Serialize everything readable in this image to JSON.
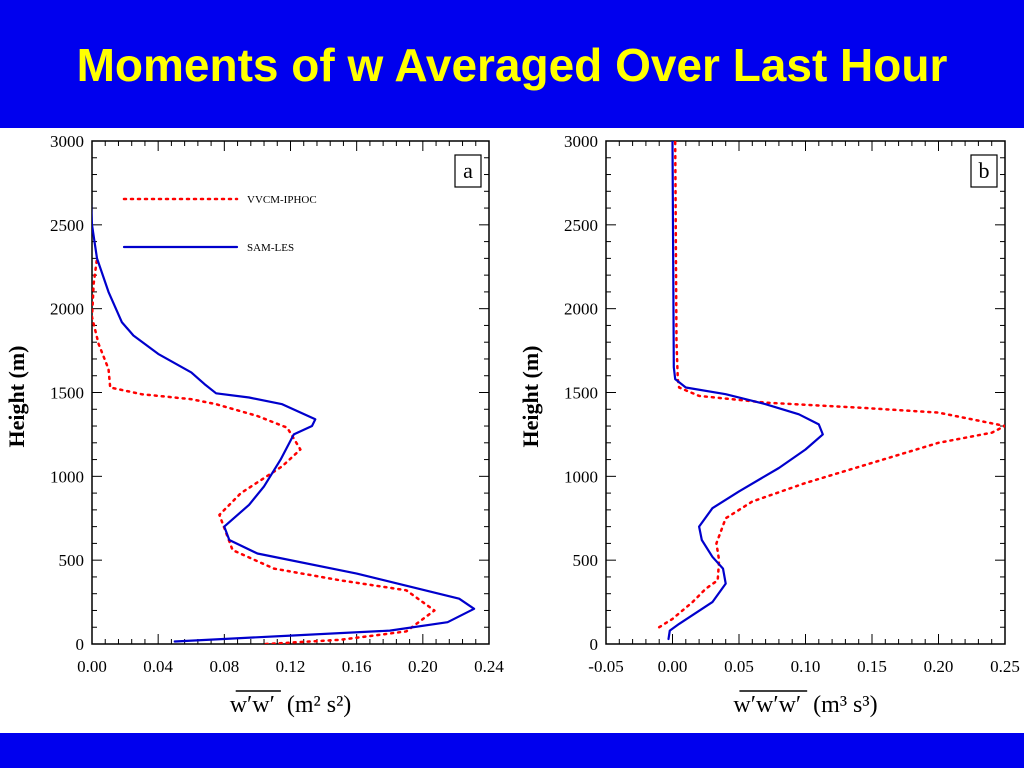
{
  "slide": {
    "title": "Moments of w Averaged Over Last Hour",
    "colors": {
      "banner": "#0000ee",
      "title": "#ffff00"
    }
  },
  "chart_data": [
    {
      "type": "line",
      "panel_label": "a",
      "ylabel": "Height (m)",
      "xlabel_symbol": "w′w′",
      "xlabel_unit": "(m² s²)",
      "xlim": [
        0.0,
        0.24
      ],
      "ylim": [
        0,
        3000
      ],
      "xticks": [
        "0.00",
        "0.04",
        "0.08",
        "0.12",
        "0.16",
        "0.20",
        "0.24"
      ],
      "xtick_values": [
        0.0,
        0.04,
        0.08,
        0.12,
        0.16,
        0.2,
        0.24
      ],
      "yticks": [
        "0",
        "500",
        "1000",
        "1500",
        "2000",
        "2500",
        "3000"
      ],
      "ytick_values": [
        0,
        500,
        1000,
        1500,
        2000,
        2500,
        3000
      ],
      "legend_position": "top-left",
      "series": [
        {
          "name": "VVCM-IPHOC",
          "color": "#ff0000",
          "style": "dotted",
          "points": [
            [
              0.105,
              0
            ],
            [
              0.15,
              25
            ],
            [
              0.19,
              75
            ],
            [
              0.207,
              200
            ],
            [
              0.19,
              320
            ],
            [
              0.15,
              380
            ],
            [
              0.11,
              450
            ],
            [
              0.085,
              560
            ],
            [
              0.077,
              770
            ],
            [
              0.09,
              900
            ],
            [
              0.115,
              1060
            ],
            [
              0.126,
              1160
            ],
            [
              0.118,
              1290
            ],
            [
              0.1,
              1360
            ],
            [
              0.075,
              1430
            ],
            [
              0.06,
              1460
            ],
            [
              0.03,
              1490
            ],
            [
              0.011,
              1530
            ],
            [
              0.01,
              1640
            ],
            [
              0.004,
              1790
            ],
            [
              0.0,
              1950
            ],
            [
              0.001,
              2150
            ],
            [
              0.003,
              2300
            ]
          ]
        },
        {
          "name": "SAM-LES",
          "color": "#0000cc",
          "style": "solid",
          "points": [
            [
              0.05,
              15
            ],
            [
              0.12,
              50
            ],
            [
              0.18,
              80
            ],
            [
              0.215,
              130
            ],
            [
              0.231,
              210
            ],
            [
              0.222,
              270
            ],
            [
              0.16,
              420
            ],
            [
              0.1,
              540
            ],
            [
              0.083,
              620
            ],
            [
              0.08,
              700
            ],
            [
              0.095,
              830
            ],
            [
              0.104,
              940
            ],
            [
              0.114,
              1100
            ],
            [
              0.122,
              1250
            ],
            [
              0.133,
              1300
            ],
            [
              0.135,
              1340
            ],
            [
              0.115,
              1430
            ],
            [
              0.095,
              1470
            ],
            [
              0.075,
              1495
            ],
            [
              0.068,
              1550
            ],
            [
              0.06,
              1620
            ],
            [
              0.04,
              1730
            ],
            [
              0.025,
              1840
            ],
            [
              0.018,
              1920
            ],
            [
              0.01,
              2100
            ],
            [
              0.003,
              2300
            ],
            [
              0.0,
              2500
            ],
            [
              -0.001,
              2700
            ]
          ]
        }
      ]
    },
    {
      "type": "line",
      "panel_label": "b",
      "ylabel": "Height (m)",
      "xlabel_symbol": "w′w′w′",
      "xlabel_unit": "(m³ s³)",
      "xlim": [
        -0.05,
        0.25
      ],
      "ylim": [
        0,
        3000
      ],
      "xticks": [
        "-0.05",
        "0.00",
        "0.05",
        "0.10",
        "0.15",
        "0.20",
        "0.25"
      ],
      "xtick_values": [
        -0.05,
        0.0,
        0.05,
        0.1,
        0.15,
        0.2,
        0.25
      ],
      "yticks": [
        "0",
        "500",
        "1000",
        "1500",
        "2000",
        "2500",
        "3000"
      ],
      "ytick_values": [
        0,
        500,
        1000,
        1500,
        2000,
        2500,
        3000
      ],
      "series": [
        {
          "name": "VVCM-IPHOC",
          "color": "#ff0000",
          "style": "dotted",
          "points": [
            [
              -0.01,
              100
            ],
            [
              0.0,
              150
            ],
            [
              0.015,
              250
            ],
            [
              0.025,
              330
            ],
            [
              0.034,
              380
            ],
            [
              0.035,
              500
            ],
            [
              0.033,
              600
            ],
            [
              0.04,
              750
            ],
            [
              0.06,
              850
            ],
            [
              0.1,
              960
            ],
            [
              0.15,
              1080
            ],
            [
              0.2,
              1200
            ],
            [
              0.24,
              1260
            ],
            [
              0.25,
              1300
            ],
            [
              0.2,
              1380
            ],
            [
              0.14,
              1410
            ],
            [
              0.07,
              1440
            ],
            [
              0.02,
              1480
            ],
            [
              0.005,
              1530
            ],
            [
              0.004,
              1580
            ],
            [
              0.003,
              1800
            ],
            [
              0.002,
              3000
            ]
          ]
        },
        {
          "name": "SAM-LES",
          "color": "#0000cc",
          "style": "solid",
          "points": [
            [
              -0.003,
              30
            ],
            [
              -0.002,
              80
            ],
            [
              0.005,
              120
            ],
            [
              0.03,
              250
            ],
            [
              0.04,
              360
            ],
            [
              0.038,
              450
            ],
            [
              0.03,
              520
            ],
            [
              0.022,
              620
            ],
            [
              0.02,
              700
            ],
            [
              0.03,
              810
            ],
            [
              0.05,
              910
            ],
            [
              0.08,
              1050
            ],
            [
              0.1,
              1160
            ],
            [
              0.113,
              1250
            ],
            [
              0.11,
              1310
            ],
            [
              0.095,
              1370
            ],
            [
              0.07,
              1430
            ],
            [
              0.04,
              1490
            ],
            [
              0.01,
              1530
            ],
            [
              0.002,
              1580
            ],
            [
              0.001,
              1650
            ],
            [
              0.0,
              3000
            ]
          ]
        }
      ]
    }
  ]
}
